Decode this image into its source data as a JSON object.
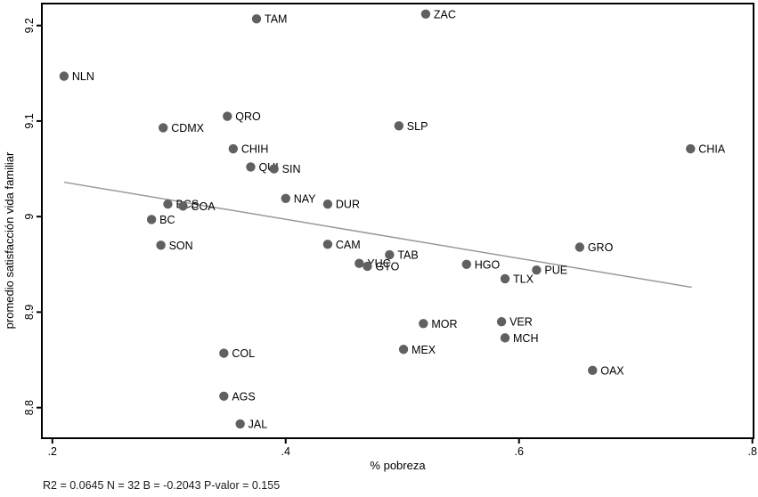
{
  "figure": {
    "caption": "R2 = 0.0645 N = 32 B = -0.2043 P-valor = 0.155"
  },
  "chart_data": {
    "type": "scatter",
    "title": "",
    "xlabel": "% pobreza",
    "ylabel": "promedio satisfacción vida familiar",
    "xlim": [
      0.191,
      0.801
    ],
    "ylim": [
      8.768,
      9.223
    ],
    "grid": false,
    "legend": "none",
    "x_ticks": [
      {
        "value": 0.2,
        "label": ".2"
      },
      {
        "value": 0.4,
        "label": ".4"
      },
      {
        "value": 0.6,
        "label": ".6"
      },
      {
        "value": 0.8,
        "label": ".8"
      }
    ],
    "y_ticks": [
      {
        "value": 9.2,
        "label": "9.2"
      },
      {
        "value": 9.1,
        "label": "9.1"
      },
      {
        "value": 9.0,
        "label": "9"
      },
      {
        "value": 8.9,
        "label": "8.9"
      },
      {
        "value": 8.8,
        "label": "8.8"
      }
    ],
    "points": [
      {
        "label": "ZAC",
        "x": 0.52,
        "y": 9.212
      },
      {
        "label": "TAM",
        "x": 0.375,
        "y": 9.207
      },
      {
        "label": "NLN",
        "x": 0.21,
        "y": 9.147
      },
      {
        "label": "QRO",
        "x": 0.35,
        "y": 9.105
      },
      {
        "label": "SLP",
        "x": 0.497,
        "y": 9.095
      },
      {
        "label": "CDMX",
        "x": 0.295,
        "y": 9.093
      },
      {
        "label": "CHIH",
        "x": 0.355,
        "y": 9.071
      },
      {
        "label": "CHIA",
        "x": 0.747,
        "y": 9.071
      },
      {
        "label": "QUI",
        "x": 0.37,
        "y": 9.052
      },
      {
        "label": "SIN",
        "x": 0.39,
        "y": 9.05
      },
      {
        "label": "NAY",
        "x": 0.4,
        "y": 9.019
      },
      {
        "label": "BCS",
        "x": 0.299,
        "y": 9.013
      },
      {
        "label": "COA",
        "x": 0.312,
        "y": 9.011
      },
      {
        "label": "DUR",
        "x": 0.436,
        "y": 9.013
      },
      {
        "label": "BC",
        "x": 0.285,
        "y": 8.997
      },
      {
        "label": "CAM",
        "x": 0.436,
        "y": 8.971
      },
      {
        "label": "SON",
        "x": 0.293,
        "y": 8.97
      },
      {
        "label": "GRO",
        "x": 0.652,
        "y": 8.968
      },
      {
        "label": "TAB",
        "x": 0.489,
        "y": 8.96
      },
      {
        "label": "YUC",
        "x": 0.463,
        "y": 8.951
      },
      {
        "label": "GTO",
        "x": 0.47,
        "y": 8.948
      },
      {
        "label": "HGO",
        "x": 0.555,
        "y": 8.95
      },
      {
        "label": "PUE",
        "x": 0.615,
        "y": 8.944
      },
      {
        "label": "TLX",
        "x": 0.588,
        "y": 8.935
      },
      {
        "label": "VER",
        "x": 0.585,
        "y": 8.89
      },
      {
        "label": "MOR",
        "x": 0.518,
        "y": 8.888
      },
      {
        "label": "MCH",
        "x": 0.588,
        "y": 8.873
      },
      {
        "label": "MEX",
        "x": 0.501,
        "y": 8.861
      },
      {
        "label": "COL",
        "x": 0.347,
        "y": 8.857
      },
      {
        "label": "OAX",
        "x": 0.663,
        "y": 8.839
      },
      {
        "label": "AGS",
        "x": 0.347,
        "y": 8.812
      },
      {
        "label": "JAL",
        "x": 0.361,
        "y": 8.783
      }
    ],
    "regression_line": {
      "x_start": 0.21,
      "y_start": 9.036,
      "x_end": 0.748,
      "y_end": 8.926
    },
    "stats": {
      "r2": "0.0645",
      "n": "32",
      "b": "-0.2043",
      "p_valor": "0.155"
    },
    "colors": {
      "marker": "#606060",
      "marker_label": "#1a1a1a",
      "line": "#999999",
      "axis": "#000000",
      "background": "#ffffff"
    }
  }
}
